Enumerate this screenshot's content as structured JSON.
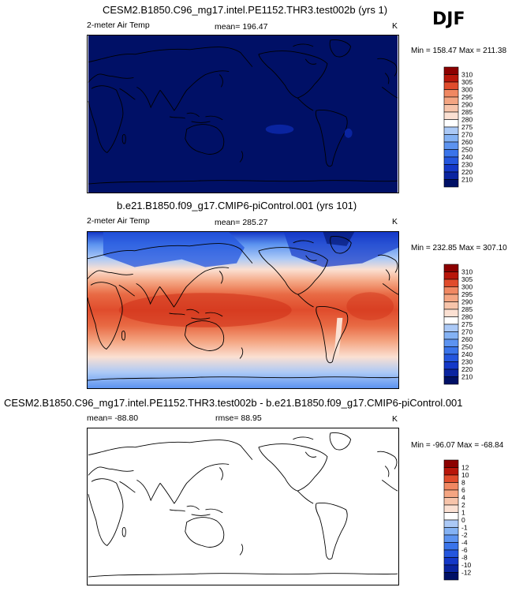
{
  "season": "DJF",
  "colors": {
    "palette": [
      "#001066",
      "#0a24a0",
      "#1438c8",
      "#2456de",
      "#3a74ea",
      "#5c93f0",
      "#84b2f4",
      "#abc9f6",
      "#d2e2f8",
      "#ffffff",
      "#fbe0d2",
      "#f7c4aa",
      "#f4a582",
      "#f08862",
      "#e86a44",
      "#e04c2c",
      "#d03018",
      "#b8160a",
      "#8c0000"
    ]
  },
  "chart_data": [
    {
      "type": "heatmap",
      "title": "CESM2.B1850.C96_mg17.intel.PE1152.THR3.test002b (yrs 1)",
      "variable": "2-meter Air Temp",
      "mean_label": "mean= 196.47",
      "units": "K",
      "minmax_label": "Min = 158.47 Max = 211.38",
      "min": 158.47,
      "max": 211.38,
      "mean": 196.47,
      "colorbar_levels": [
        "210",
        "220",
        "230",
        "240",
        "250",
        "260",
        "270",
        "275",
        "280",
        "285",
        "290",
        "295",
        "300",
        "305",
        "310"
      ]
    },
    {
      "type": "heatmap",
      "title": "b.e21.B1850.f09_g17.CMIP6-piControl.001 (yrs 101)",
      "variable": "2-meter Air Temp",
      "mean_label": "mean= 285.27",
      "units": "K",
      "minmax_label": "Min = 232.85 Max = 307.10",
      "min": 232.85,
      "max": 307.1,
      "mean": 285.27,
      "colorbar_levels": [
        "210",
        "220",
        "230",
        "240",
        "250",
        "260",
        "270",
        "275",
        "280",
        "285",
        "290",
        "295",
        "300",
        "305",
        "310"
      ]
    },
    {
      "type": "heatmap",
      "title": "CESM2.B1850.C96_mg17.intel.PE1152.THR3.test002b - b.e21.B1850.f09_g17.CMIP6-piControl.001",
      "mean_label": "mean= -88.80",
      "rmse_label": "rmse= 88.95",
      "units": "K",
      "minmax_label": "Min = -96.07 Max = -68.84",
      "min": -96.07,
      "max": -68.84,
      "mean": -88.8,
      "rmse": 88.95,
      "colorbar_levels": [
        "-12",
        "-10",
        "-8",
        "-6",
        "-4",
        "-2",
        "-1",
        "0",
        "1",
        "2",
        "4",
        "6",
        "8",
        "10",
        "12"
      ]
    }
  ]
}
